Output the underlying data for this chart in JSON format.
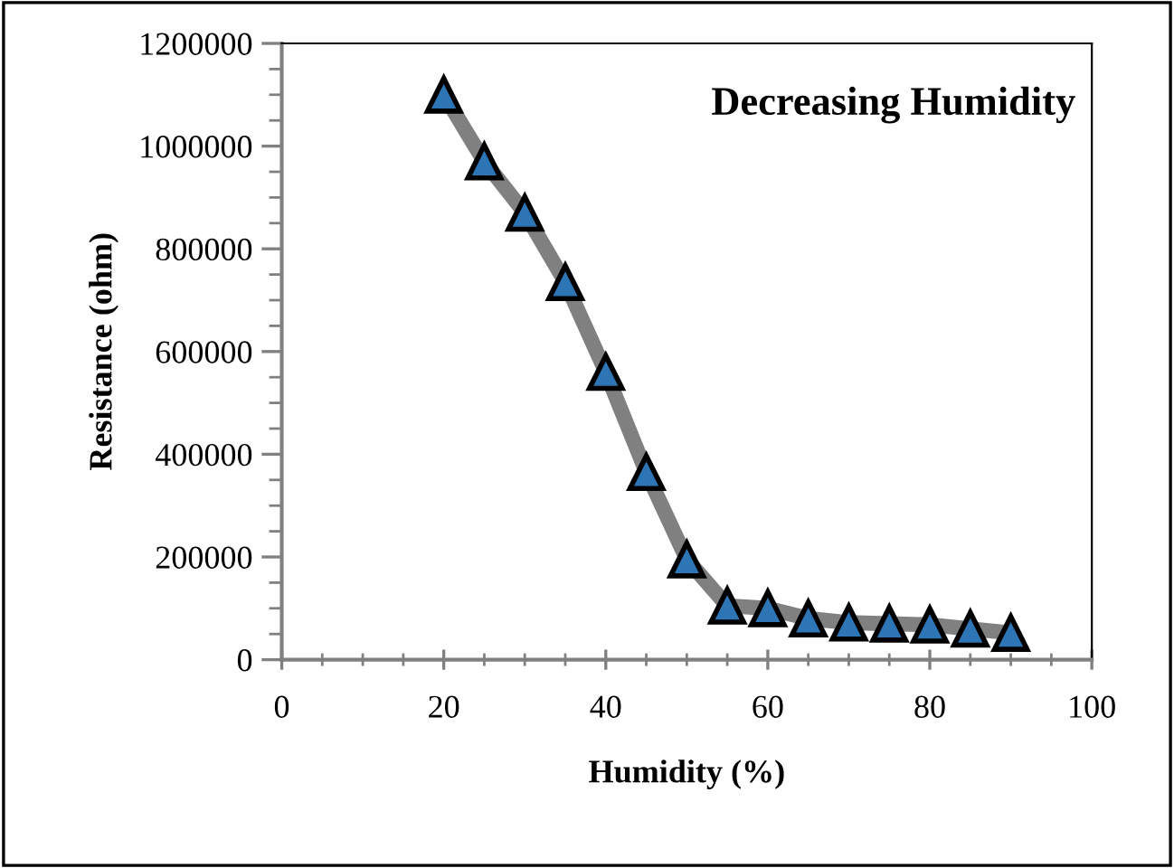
{
  "chart_data": {
    "type": "line",
    "title": "Decreasing Humidity",
    "xlabel": "Humidity (%)",
    "ylabel": "Resistance (ohm)",
    "x": [
      20,
      25,
      30,
      35,
      40,
      45,
      50,
      55,
      60,
      65,
      70,
      75,
      80,
      85,
      90
    ],
    "series": [
      {
        "color": "#2e75b6",
        "values": [
          1100000,
          970000,
          870000,
          735000,
          560000,
          365000,
          195000,
          105000,
          100000,
          80000,
          72000,
          70000,
          68000,
          60000,
          52000
        ]
      }
    ],
    "marker": "triangle",
    "line_style": "solid",
    "xlim": [
      0,
      100
    ],
    "xticks": [
      0,
      20,
      40,
      60,
      80,
      100
    ],
    "ylim": [
      0,
      1200000
    ],
    "yticks": [
      0,
      200000,
      400000,
      600000,
      800000,
      1000000,
      1200000
    ],
    "grid": false,
    "legend": false
  }
}
